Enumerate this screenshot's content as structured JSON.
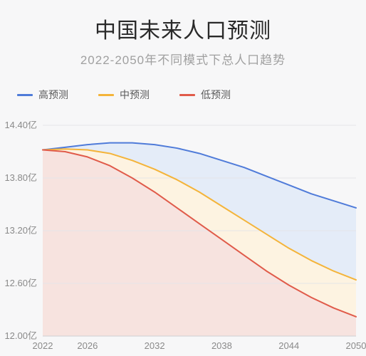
{
  "title": "中国未来人口预测",
  "subtitle": "2022-2050年不同模式下总人口趋势",
  "title_fontsize": 30,
  "subtitle_fontsize": 17,
  "title_color": "#2a2a2a",
  "subtitle_color": "#a0a0a0",
  "background_color": "#f7f7f8",
  "chart": {
    "type": "line-area",
    "x_field": "year",
    "x_ticks": [
      2022,
      2026,
      2032,
      2038,
      2044,
      2050
    ],
    "y_ticks": [
      12.0,
      12.6,
      13.2,
      13.8,
      14.4
    ],
    "y_tick_labels": [
      "12.00亿",
      "12.60亿",
      "13.20亿",
      "13.80亿",
      "14.40亿"
    ],
    "xlim": [
      2022,
      2050
    ],
    "ylim": [
      12.0,
      14.4
    ],
    "grid_color": "#e5e5e8",
    "axis_color": "#cfcfd2",
    "tick_font_color": "#8a8a8a",
    "tick_fontsize": 13,
    "line_width": 2,
    "series": [
      {
        "id": "high",
        "label": "高预测",
        "color": "#4f7bd9",
        "fill": "#e4ecf8",
        "fill_opacity": 1,
        "points": [
          [
            2022,
            14.12
          ],
          [
            2024,
            14.15
          ],
          [
            2026,
            14.18
          ],
          [
            2028,
            14.2
          ],
          [
            2030,
            14.2
          ],
          [
            2032,
            14.18
          ],
          [
            2034,
            14.14
          ],
          [
            2036,
            14.08
          ],
          [
            2038,
            14.0
          ],
          [
            2040,
            13.92
          ],
          [
            2042,
            13.82
          ],
          [
            2044,
            13.72
          ],
          [
            2046,
            13.62
          ],
          [
            2048,
            13.54
          ],
          [
            2050,
            13.46
          ]
        ]
      },
      {
        "id": "mid",
        "label": "中预测",
        "color": "#f4b43a",
        "fill": "#fdf3e1",
        "fill_opacity": 1,
        "points": [
          [
            2022,
            14.12
          ],
          [
            2024,
            14.13
          ],
          [
            2026,
            14.12
          ],
          [
            2028,
            14.08
          ],
          [
            2030,
            14.0
          ],
          [
            2032,
            13.9
          ],
          [
            2034,
            13.78
          ],
          [
            2036,
            13.64
          ],
          [
            2038,
            13.48
          ],
          [
            2040,
            13.32
          ],
          [
            2042,
            13.16
          ],
          [
            2044,
            13.0
          ],
          [
            2046,
            12.86
          ],
          [
            2048,
            12.74
          ],
          [
            2050,
            12.64
          ]
        ]
      },
      {
        "id": "low",
        "label": "低预测",
        "color": "#e05b4a",
        "fill": "#f7e3df",
        "fill_opacity": 1,
        "points": [
          [
            2022,
            14.12
          ],
          [
            2024,
            14.1
          ],
          [
            2026,
            14.04
          ],
          [
            2028,
            13.94
          ],
          [
            2030,
            13.8
          ],
          [
            2032,
            13.64
          ],
          [
            2034,
            13.46
          ],
          [
            2036,
            13.28
          ],
          [
            2038,
            13.1
          ],
          [
            2040,
            12.92
          ],
          [
            2042,
            12.74
          ],
          [
            2044,
            12.58
          ],
          [
            2046,
            12.44
          ],
          [
            2048,
            12.32
          ],
          [
            2050,
            12.22
          ]
        ]
      }
    ],
    "legend_fontsize": 14,
    "legend_color": "#5a5a5a"
  }
}
